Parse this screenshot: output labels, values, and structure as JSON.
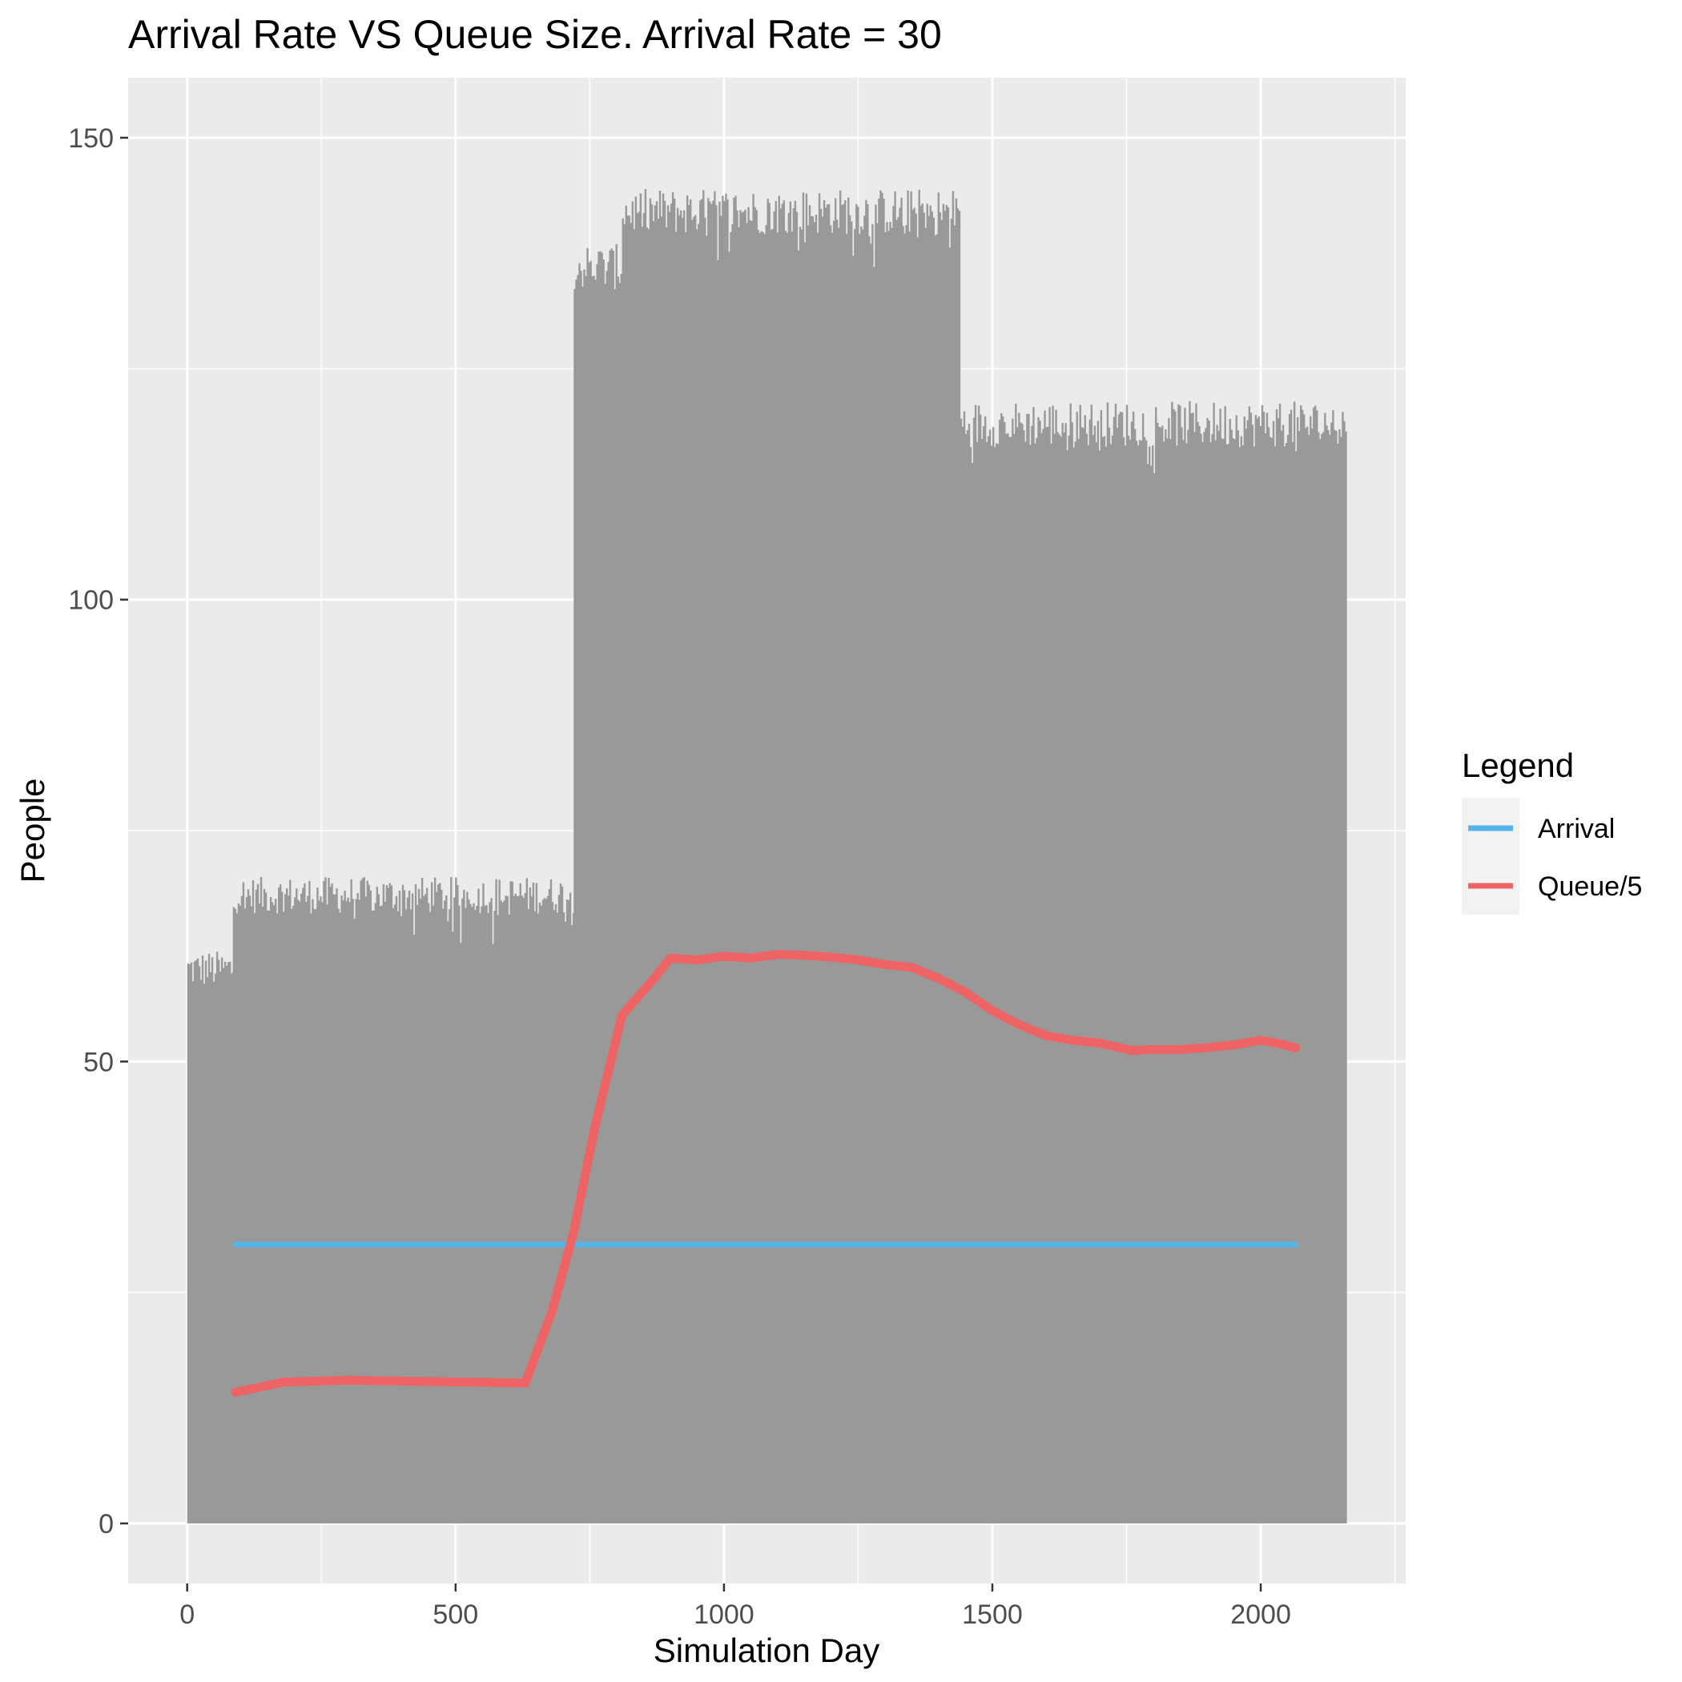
{
  "chart_data": {
    "type": "line",
    "title": "Arrival Rate VS Queue Size. Arrival Rate = 30",
    "xlabel": "Simulation Day",
    "ylabel": "People",
    "xlim": [
      -110,
      2270
    ],
    "ylim": [
      -6.5,
      156.5
    ],
    "x_ticks": [
      0,
      500,
      1000,
      1500,
      2000
    ],
    "x_tick_labels": [
      "0",
      "500",
      "1000",
      "1500",
      "2000"
    ],
    "y_ticks": [
      0,
      50,
      100,
      150
    ],
    "y_tick_labels": [
      "0",
      "50",
      "100",
      "150"
    ],
    "grid": true,
    "legend": {
      "title": "Legend",
      "position": "right"
    },
    "background_bars": {
      "description": "daily queue size (gray vertical bars)",
      "color": "#999999",
      "segments": [
        {
          "x_start": 0,
          "x_end": 85,
          "level": 60,
          "noise": 2.0
        },
        {
          "x_start": 85,
          "x_end": 720,
          "level": 68,
          "noise": 2.0
        },
        {
          "x_start": 720,
          "x_end": 810,
          "level": 136,
          "noise": 2.5
        },
        {
          "x_start": 810,
          "x_end": 1440,
          "level": 142,
          "noise": 2.5
        },
        {
          "x_start": 1440,
          "x_end": 2160,
          "level": 119,
          "noise": 2.5
        }
      ]
    },
    "series": [
      {
        "name": "Arrival",
        "color": "#56B4E9",
        "points": [
          [
            90,
            30.2
          ],
          [
            2065,
            30.2
          ]
        ]
      },
      {
        "name": "Queue/5",
        "color": "#EE6363",
        "points": [
          [
            90,
            14.2
          ],
          [
            180,
            15.3
          ],
          [
            300,
            15.5
          ],
          [
            400,
            15.4
          ],
          [
            520,
            15.3
          ],
          [
            630,
            15.2
          ],
          [
            680,
            23.0
          ],
          [
            720,
            31.5
          ],
          [
            760,
            43.0
          ],
          [
            810,
            55.0
          ],
          [
            870,
            59.0
          ],
          [
            900,
            61.2
          ],
          [
            950,
            61.0
          ],
          [
            1000,
            61.4
          ],
          [
            1050,
            61.2
          ],
          [
            1100,
            61.6
          ],
          [
            1150,
            61.5
          ],
          [
            1200,
            61.3
          ],
          [
            1250,
            61.0
          ],
          [
            1300,
            60.5
          ],
          [
            1350,
            60.2
          ],
          [
            1400,
            59.0
          ],
          [
            1450,
            57.5
          ],
          [
            1500,
            55.5
          ],
          [
            1550,
            54.0
          ],
          [
            1600,
            52.8
          ],
          [
            1650,
            52.3
          ],
          [
            1700,
            52.0
          ],
          [
            1760,
            51.2
          ],
          [
            1800,
            51.3
          ],
          [
            1850,
            51.3
          ],
          [
            1900,
            51.5
          ],
          [
            1950,
            51.8
          ],
          [
            2000,
            52.3
          ],
          [
            2030,
            52.0
          ],
          [
            2065,
            51.5
          ]
        ]
      }
    ]
  }
}
